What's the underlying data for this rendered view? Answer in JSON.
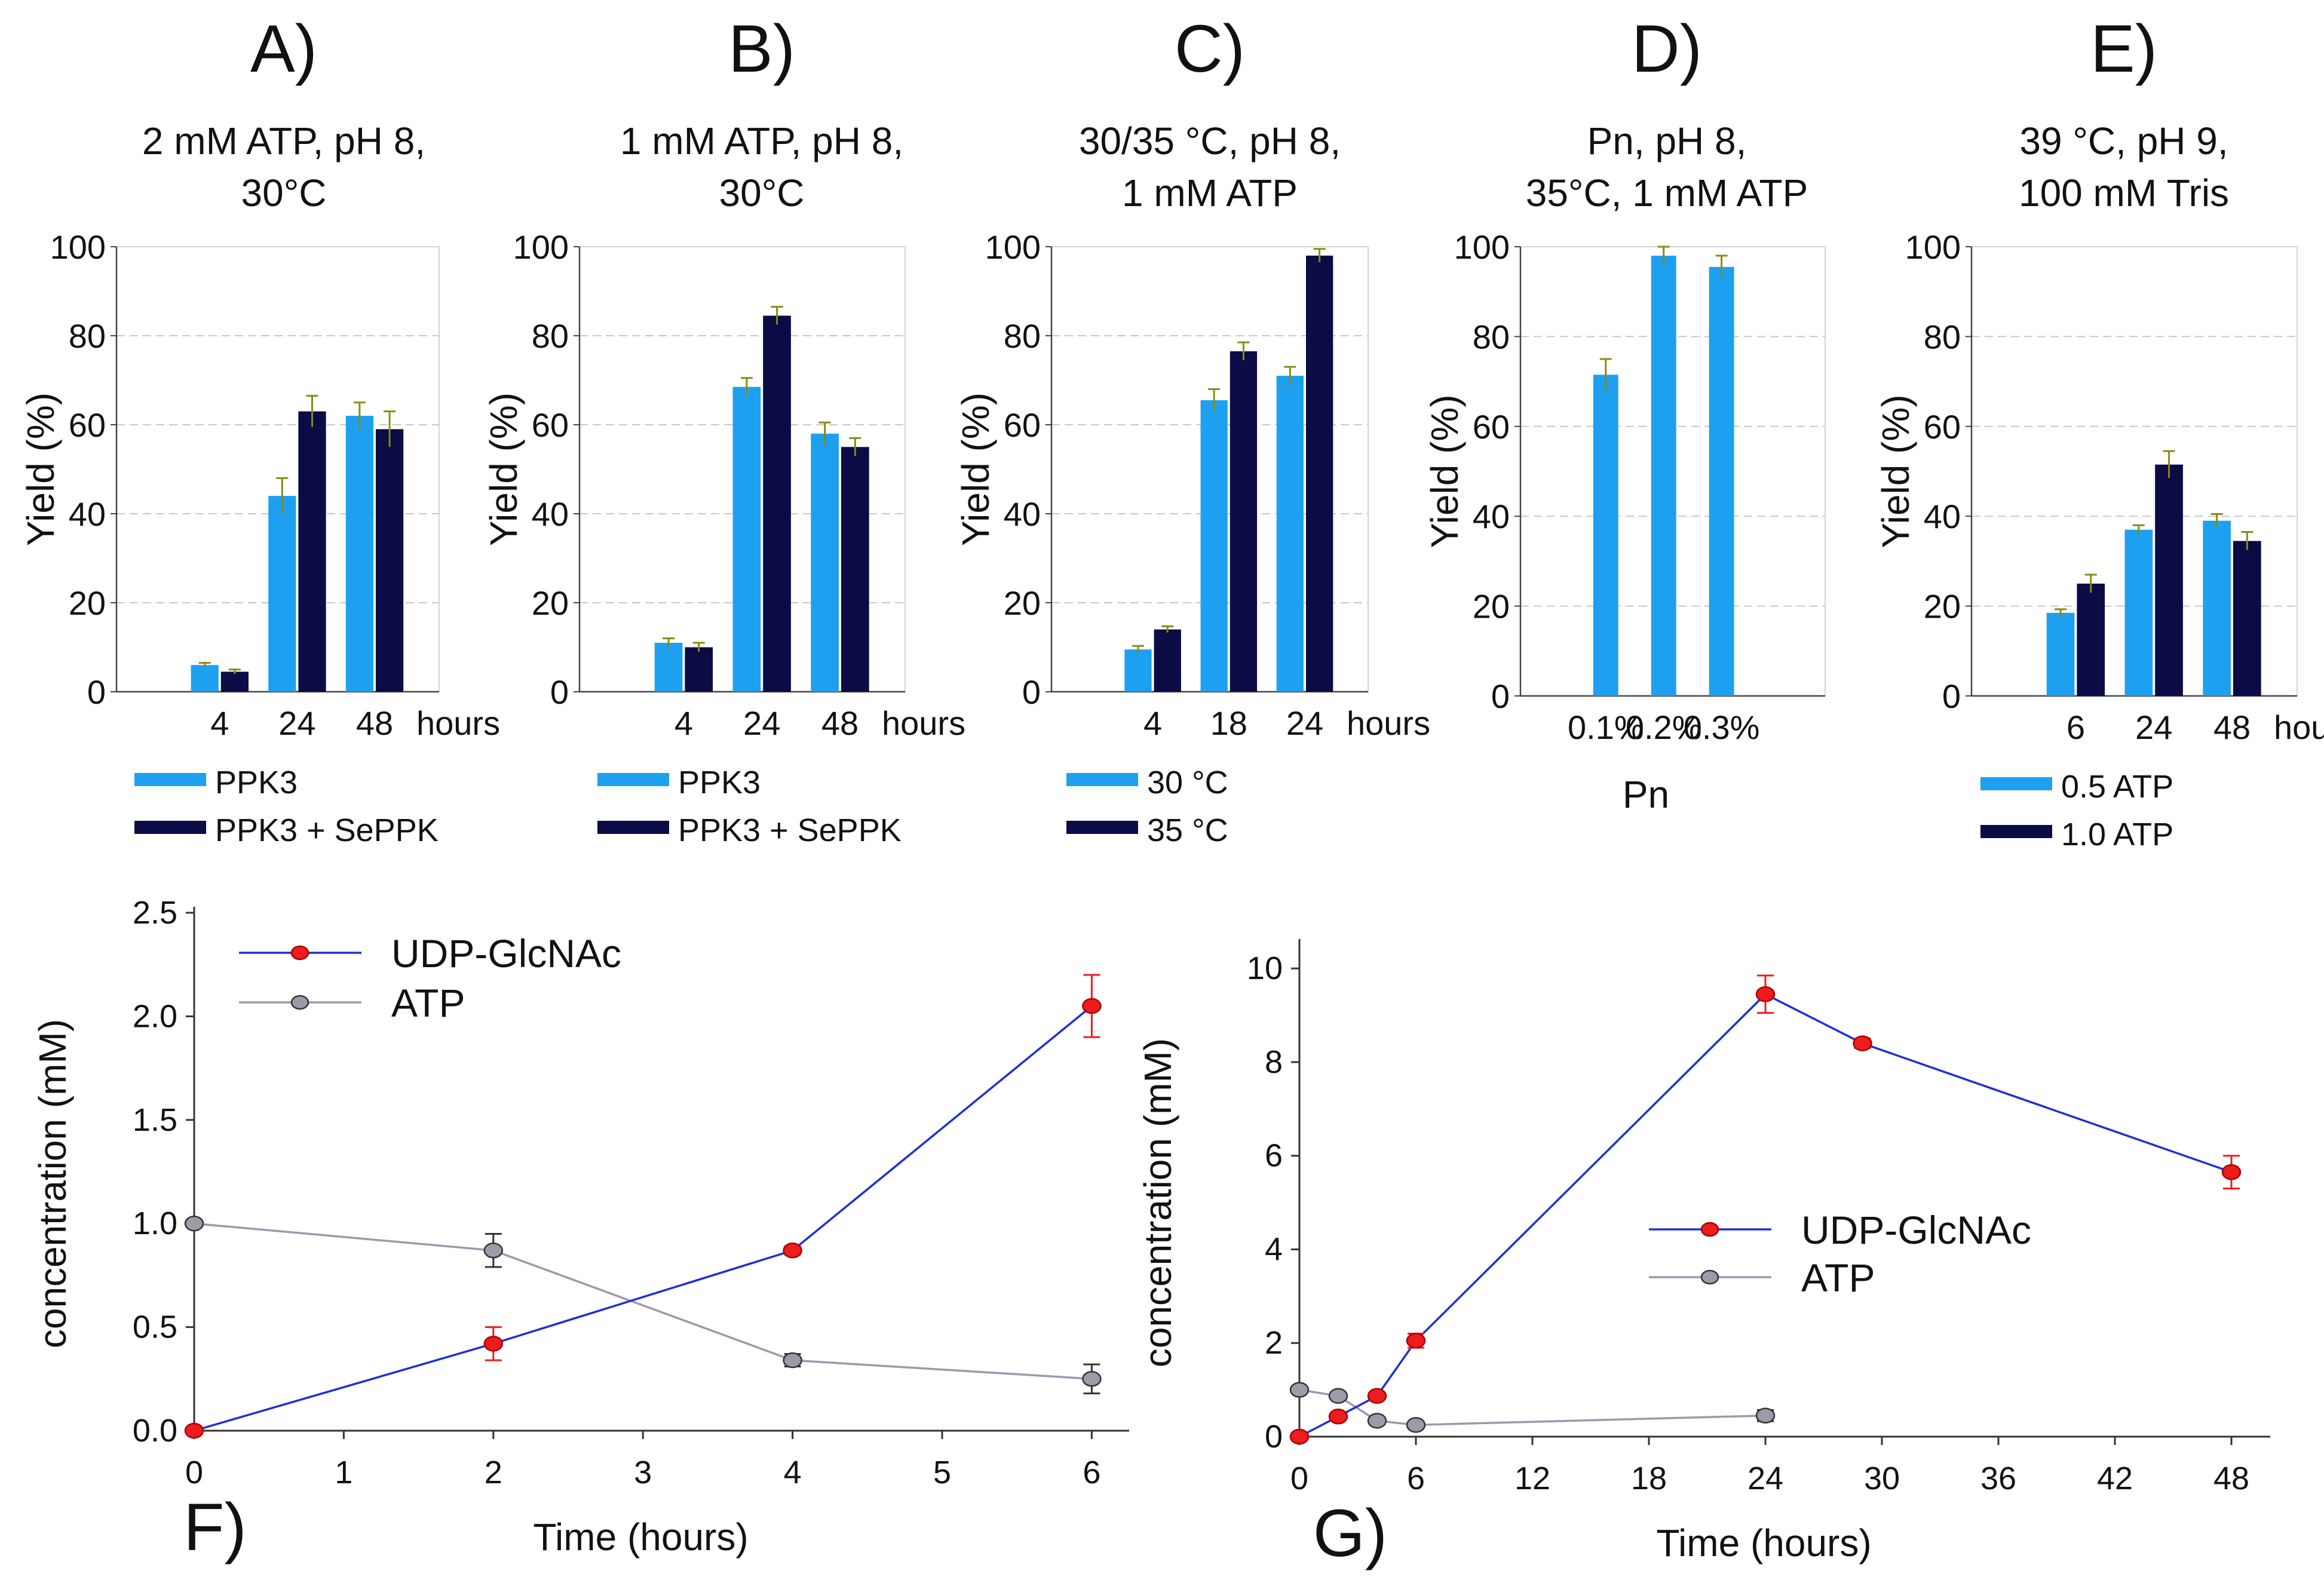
{
  "colors": {
    "light": "#1EA0F0",
    "dark": "#0B0B45",
    "err": "#8A8A10",
    "udp_line": "#1F2FD8",
    "udp_marker": "#EE1C1C",
    "atp_line": "#9A9AAE",
    "atp_marker": "#9C9CA8"
  },
  "chart_data": [
    {
      "id": "A",
      "type": "bar",
      "letter": "A)",
      "title": [
        "2 mM ATP, pH 8,",
        "30°C"
      ],
      "ylabel": "Yield (%)",
      "ylim": [
        0,
        100
      ],
      "yticks": [
        "0",
        "20",
        "40",
        "60",
        "80",
        "100"
      ],
      "categories": [
        "4",
        "24",
        "48"
      ],
      "xunit": "hours",
      "series": [
        {
          "name": "PPK3",
          "values": [
            6,
            44,
            62
          ],
          "errors": [
            0.5,
            4,
            3
          ]
        },
        {
          "name": "PPK3 + SePPK",
          "values": [
            4.5,
            63,
            59
          ],
          "errors": [
            0.5,
            3.5,
            4
          ]
        }
      ]
    },
    {
      "id": "B",
      "type": "bar",
      "letter": "B)",
      "title": [
        "1 mM ATP, pH 8,",
        "30°C"
      ],
      "ylabel": "Yield (%)",
      "ylim": [
        0,
        100
      ],
      "yticks": [
        "0",
        "20",
        "40",
        "60",
        "80",
        "100"
      ],
      "categories": [
        "4",
        "24",
        "48"
      ],
      "xunit": "hours",
      "series": [
        {
          "name": "PPK3",
          "values": [
            11,
            68.5,
            58
          ],
          "errors": [
            1,
            2,
            2.5
          ]
        },
        {
          "name": "PPK3 + SePPK",
          "values": [
            10,
            84.5,
            55
          ],
          "errors": [
            1,
            2,
            2
          ]
        }
      ]
    },
    {
      "id": "C",
      "type": "bar",
      "letter": "C)",
      "title": [
        "30/35 °C, pH 8,",
        "1 mM ATP"
      ],
      "ylabel": "Yield (%)",
      "ylim": [
        0,
        100
      ],
      "yticks": [
        "0",
        "20",
        "40",
        "60",
        "80",
        "100"
      ],
      "categories": [
        "4",
        "18",
        "24"
      ],
      "xunit": "hours",
      "series": [
        {
          "name": "30 °C",
          "values": [
            9.5,
            65.5,
            71
          ],
          "errors": [
            0.8,
            2.5,
            2
          ]
        },
        {
          "name": "35 °C",
          "values": [
            14,
            76.5,
            98
          ],
          "errors": [
            0.7,
            2,
            1.5
          ]
        }
      ]
    },
    {
      "id": "D",
      "type": "bar",
      "letter": "D)",
      "title": [
        "Pn, pH 8,",
        "35°C, 1 mM ATP"
      ],
      "ylabel": "Yield (%)",
      "ylim": [
        0,
        100
      ],
      "yticks": [
        "0",
        "20",
        "40",
        "60",
        "80",
        "100"
      ],
      "categories": [
        "0.1%",
        "0.2%",
        "0.3%"
      ],
      "xlabel": "Pn",
      "series": [
        {
          "name": "Pn",
          "values": [
            71.5,
            98,
            95.5
          ],
          "errors": [
            3.5,
            2,
            2.5
          ]
        }
      ]
    },
    {
      "id": "E",
      "type": "bar",
      "letter": "E)",
      "title": [
        "39 °C, pH 9,",
        "100 mM Tris"
      ],
      "ylabel": "Yield (%)",
      "ylim": [
        0,
        100
      ],
      "yticks": [
        "0",
        "20",
        "40",
        "60",
        "80",
        "100"
      ],
      "categories": [
        "6",
        "24",
        "48"
      ],
      "xunit": "hours",
      "series": [
        {
          "name": "0.5 ATP",
          "values": [
            18.5,
            37,
            39
          ],
          "errors": [
            0.8,
            1,
            1.5
          ]
        },
        {
          "name": "1.0 ATP",
          "values": [
            25,
            51.5,
            34.5
          ],
          "errors": [
            2,
            3,
            2
          ]
        }
      ]
    },
    {
      "id": "F",
      "type": "line",
      "letter": "F)",
      "xlabel": "Time (hours)",
      "ylabel": "concentration (mM)",
      "xlim": [
        0,
        6.25
      ],
      "ylim": [
        0,
        2.5
      ],
      "xticks": [
        "0",
        "1",
        "2",
        "3",
        "4",
        "5",
        "6"
      ],
      "yticks": [
        "0.0",
        "0.5",
        "1.0",
        "1.5",
        "2.0",
        "2.5"
      ],
      "series": [
        {
          "name": "UDP-GlcNAc",
          "x": [
            0,
            2,
            4,
            6
          ],
          "y": [
            0,
            0.42,
            0.87,
            2.05
          ],
          "errors": [
            0,
            0.08,
            0.02,
            0.15
          ]
        },
        {
          "name": "ATP",
          "x": [
            0,
            2,
            4,
            6
          ],
          "y": [
            1.0,
            0.87,
            0.34,
            0.25
          ],
          "errors": [
            0,
            0.08,
            0.03,
            0.07
          ]
        }
      ]
    },
    {
      "id": "G",
      "type": "line",
      "letter": "G)",
      "xlabel": "Time (hours)",
      "ylabel": "concentration (mM)",
      "xlim": [
        0,
        50
      ],
      "ylim": [
        0,
        10.5
      ],
      "xticks": [
        "0",
        "6",
        "12",
        "18",
        "24",
        "30",
        "36",
        "42",
        "48"
      ],
      "yticks": [
        "0",
        "2",
        "4",
        "6",
        "8",
        "10"
      ],
      "series": [
        {
          "name": "UDP-GlcNAc",
          "x": [
            0,
            2,
            4,
            6,
            24,
            29,
            48
          ],
          "y": [
            0,
            0.43,
            0.87,
            2.05,
            9.45,
            8.4,
            5.65
          ],
          "errors": [
            0,
            0,
            0.05,
            0.15,
            0.4,
            0.1,
            0.35
          ]
        },
        {
          "name": "ATP",
          "x": [
            0,
            2,
            4,
            6,
            24
          ],
          "y": [
            1.0,
            0.87,
            0.34,
            0.25,
            0.45
          ],
          "errors": [
            0,
            0,
            0,
            0,
            0.12
          ]
        }
      ]
    }
  ]
}
